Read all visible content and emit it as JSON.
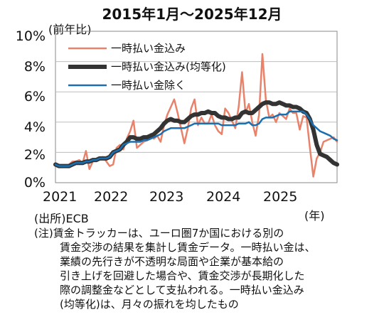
{
  "title": "2015年1月～2025年12月",
  "unit_label": "(前年比)",
  "year_unit": "(年)",
  "source": "(出所)ECB",
  "note_lines": [
    "(注)賃金トラッカーは、ユーロ圏7か国における別の",
    "賃金交渉の結果を集計し賃金データ。一時払い金は、",
    "業績の先行きが不透明な局面や企業が基本給の",
    "引き上げを回避した場合や、賃金交渉が長期化した",
    "際の調整金などとして支払われる。一時払い金込み",
    "(均等化)は、月々の振れを均したもの"
  ],
  "chart_data": {
    "type": "line",
    "ylim": [
      0,
      10
    ],
    "yticks": [
      "0%",
      "2%",
      "4%",
      "6%",
      "8%",
      "10%"
    ],
    "xticks": [
      "2021",
      "2022",
      "2023",
      "2024",
      "2025"
    ],
    "series": [
      {
        "name": "一時払い金込み",
        "color": "#e8826a",
        "width": 2.5,
        "values": [
          1.2,
          1.1,
          1.1,
          1.1,
          1.2,
          1.4,
          1.4,
          1.5,
          1.3,
          2.1,
          0.9,
          1.4,
          1.5,
          1.6,
          1.7,
          1.4,
          1.1,
          1.2,
          2.3,
          2.5,
          2.2,
          2.9,
          3.4,
          4.1,
          2.3,
          2.5,
          2.7,
          2.8,
          3.2,
          2.9,
          3.1,
          2.7,
          3.8,
          4.5,
          5.0,
          5.5,
          4.6,
          3.6,
          2.6,
          3.6,
          4.9,
          5.5,
          3.8,
          4.3,
          3.9,
          3.9,
          4.5,
          3.8,
          3.4,
          3.2,
          4.9,
          4.6,
          4.1,
          3.6,
          5.0,
          7.3,
          4.6,
          5.2,
          4.0,
          3.1,
          4.5,
          8.5,
          5.5,
          4.3,
          4.5,
          4.0,
          4.6,
          4.4,
          4.2,
          4.9,
          4.6,
          4.6,
          3.5,
          4.4,
          4.3,
          2.3,
          0.4,
          1.6,
          2.0,
          2.7,
          2.8,
          2.9,
          3.0,
          2.7
        ]
      },
      {
        "name": "一時払い金込み(均等化)",
        "color": "#333333",
        "width": 6,
        "values": [
          1.2,
          1.1,
          1.1,
          1.1,
          1.1,
          1.2,
          1.3,
          1.3,
          1.3,
          1.4,
          1.4,
          1.5,
          1.5,
          1.6,
          1.6,
          1.6,
          1.7,
          2.0,
          2.1,
          2.2,
          2.5,
          2.7,
          3.0,
          3.0,
          2.9,
          2.9,
          3.0,
          3.0,
          3.1,
          3.2,
          3.4,
          3.6,
          3.9,
          4.1,
          4.2,
          4.1,
          4.1,
          4.0,
          4.0,
          4.2,
          4.4,
          4.5,
          4.5,
          4.6,
          4.6,
          4.7,
          4.6,
          4.6,
          4.4,
          4.3,
          4.3,
          4.2,
          4.2,
          4.3,
          4.3,
          4.6,
          4.7,
          4.6,
          4.6,
          4.8,
          5.0,
          5.2,
          5.3,
          5.3,
          5.2,
          5.2,
          5.3,
          5.2,
          5.1,
          5.1,
          5.0,
          5.0,
          4.9,
          4.7,
          4.6,
          4.2,
          3.5,
          2.5,
          1.9,
          1.8,
          1.7,
          1.5,
          1.3,
          1.2
        ]
      },
      {
        "name": "一時払い金除く",
        "color": "#1a6fb0",
        "width": 2.5,
        "values": [
          1.2,
          1.1,
          1.1,
          1.1,
          1.1,
          1.2,
          1.3,
          1.3,
          1.3,
          1.4,
          1.4,
          1.5,
          1.5,
          1.6,
          1.6,
          1.6,
          1.7,
          2.0,
          2.1,
          2.2,
          2.5,
          2.6,
          2.7,
          2.7,
          2.7,
          2.7,
          2.8,
          2.8,
          2.9,
          3.0,
          3.1,
          3.2,
          3.4,
          3.5,
          3.6,
          3.6,
          3.6,
          3.6,
          3.6,
          3.7,
          3.8,
          3.9,
          3.9,
          3.9,
          3.9,
          3.9,
          3.9,
          3.9,
          3.9,
          3.8,
          3.8,
          3.8,
          3.8,
          3.8,
          3.9,
          3.9,
          3.9,
          4.0,
          3.8,
          3.8,
          3.9,
          4.2,
          4.3,
          4.3,
          4.3,
          4.4,
          4.5,
          4.5,
          4.5,
          4.7,
          4.7,
          4.7,
          4.7,
          4.7,
          4.5,
          4.2,
          3.8,
          3.6,
          3.4,
          3.3,
          3.2,
          3.1,
          2.9,
          2.8
        ]
      }
    ]
  }
}
